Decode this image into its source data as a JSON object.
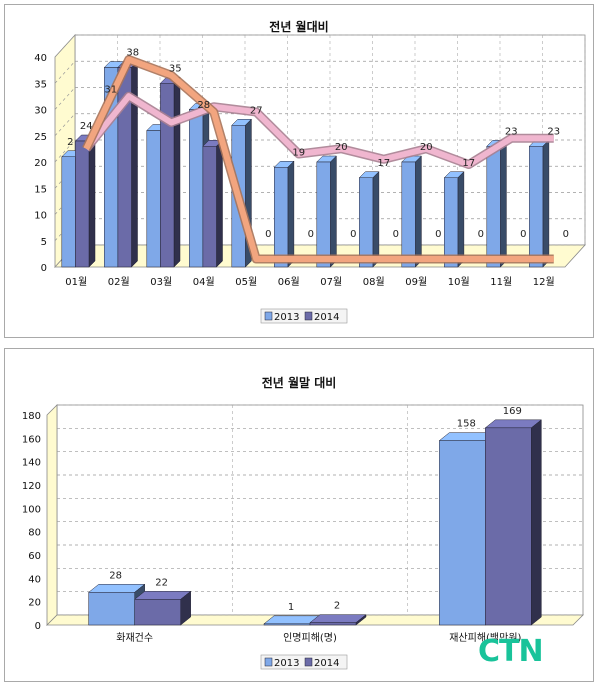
{
  "chart_data": [
    {
      "type": "bar",
      "title": "전년 월대비",
      "categories": [
        "01월",
        "02월",
        "03월",
        "04월",
        "05월",
        "06월",
        "07월",
        "08월",
        "09월",
        "10월",
        "11월",
        "12월"
      ],
      "series": [
        {
          "name": "2013",
          "values": [
            21,
            38,
            26,
            30,
            27,
            19,
            20,
            17,
            20,
            17,
            23,
            23
          ],
          "line": [
            21,
            38,
            35,
            28,
            0,
            0,
            0,
            0,
            0,
            0,
            0,
            0
          ]
        },
        {
          "name": "2014",
          "values": [
            24,
            38,
            35,
            23,
            0,
            0,
            0,
            0,
            0,
            0,
            0,
            0
          ],
          "line": [
            21,
            31,
            26,
            29,
            28,
            20,
            21,
            19,
            21,
            18,
            23,
            23
          ]
        }
      ],
      "data_labels": [
        "2",
        "24",
        "31",
        "38",
        "35",
        "28",
        "27",
        "19",
        "20",
        "17",
        "20",
        "17",
        "23",
        "23"
      ],
      "zero_labels": [
        "0",
        "0",
        "0",
        "0",
        "0",
        "0",
        "0",
        "0"
      ],
      "ylim": [
        0,
        40
      ],
      "yticks": [
        0,
        5,
        10,
        15,
        20,
        25,
        30,
        35,
        40
      ],
      "grid": true,
      "legend": "bottom-center"
    },
    {
      "type": "bar",
      "title": "전년 월말 대비",
      "categories": [
        "화재건수",
        "인명피해(명)",
        "재산피해(백만원)"
      ],
      "series": [
        {
          "name": "2013",
          "values": [
            28,
            1,
            158
          ]
        },
        {
          "name": "2014",
          "values": [
            22,
            2,
            169
          ]
        }
      ],
      "ylim": [
        0,
        180
      ],
      "yticks": [
        0,
        20,
        40,
        60,
        80,
        100,
        120,
        140,
        160,
        180
      ],
      "grid": true,
      "legend": "bottom-center"
    }
  ],
  "colors": {
    "bar2013": "#7fa8e8",
    "bar2014": "#6b6ba8",
    "floor": "#fffbd0",
    "line_orange": "#f2a57f",
    "line_pink": "#f0b6cf"
  },
  "watermark": "CTN"
}
